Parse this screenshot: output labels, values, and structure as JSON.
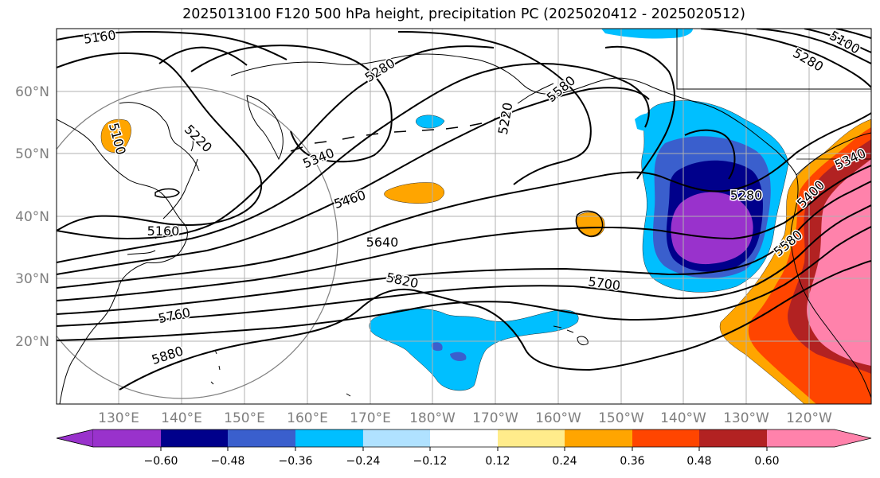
{
  "title": "2025013100 F120 500 hPa height, precipitation PC (2025020412 - 2025020512)",
  "lat_labels": [
    "20°N",
    "30°N",
    "40°N",
    "50°N",
    "60°N"
  ],
  "lon_labels": [
    "130°E",
    "140°E",
    "150°E",
    "160°E",
    "170°E",
    "180°W",
    "170°W",
    "160°W",
    "150°W",
    "140°W",
    "130°W",
    "120°W"
  ],
  "contour_labels": [
    "5160",
    "5280",
    "5100",
    "5340",
    "5220",
    "5580",
    "5160",
    "5220",
    "5280",
    "5460",
    "5640",
    "5820",
    "5700",
    "5760",
    "5880",
    "5400",
    "5340",
    "5580",
    "5280",
    "5100"
  ],
  "colorbar": {
    "tick_labels": [
      "−0.60",
      "−0.48",
      "−0.36",
      "−0.24",
      "−0.12",
      "0.12",
      "0.24",
      "0.36",
      "0.48",
      "0.60"
    ],
    "colors": [
      "#9932cc",
      "#00008b",
      "#3a5fcd",
      "#00bfff",
      "#b0e2ff",
      "#ffffff",
      "#ffec8b",
      "#ffa500",
      "#ff4500",
      "#b22222",
      "#ff82ab"
    ]
  }
}
